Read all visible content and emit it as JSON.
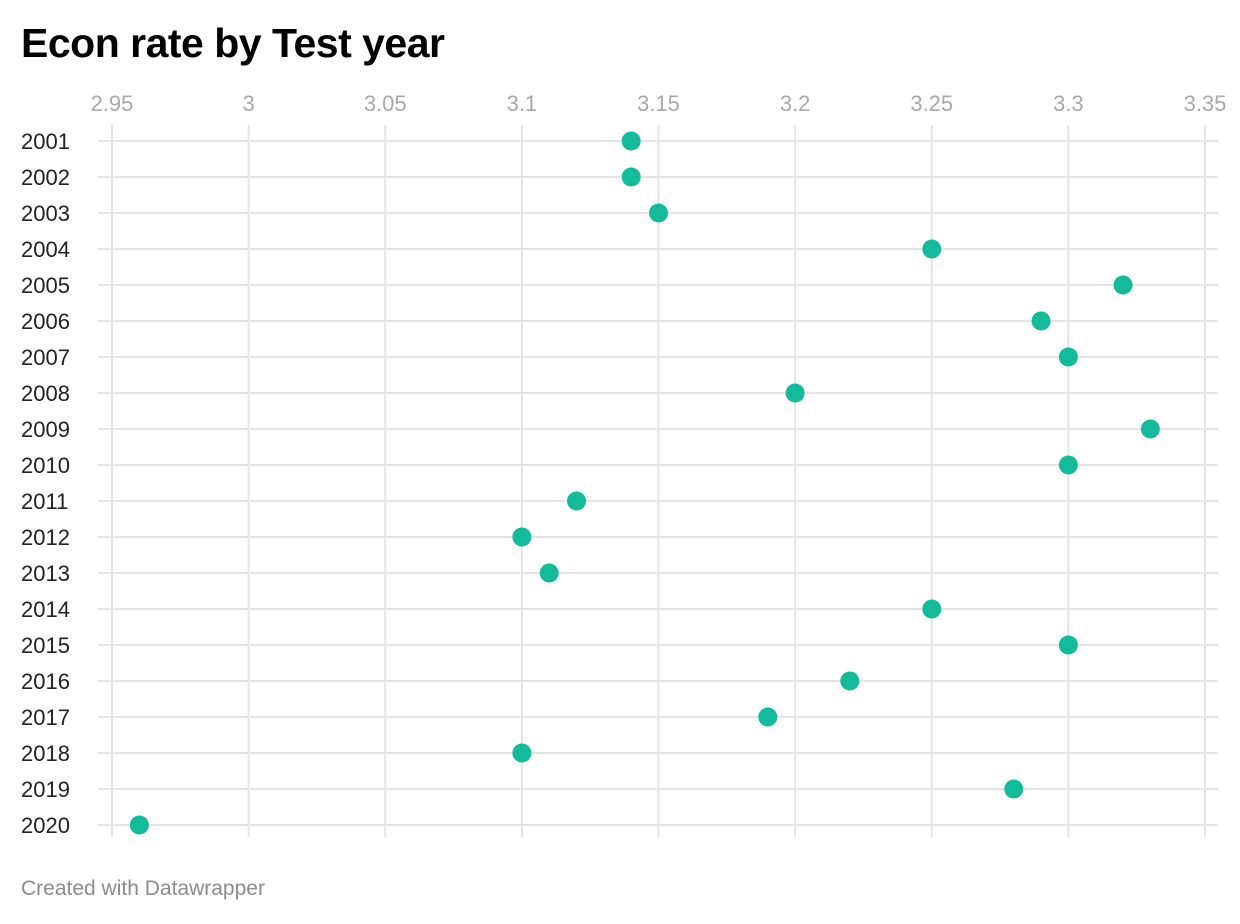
{
  "chart_data": {
    "type": "scatter",
    "title": "Econ rate by Test year",
    "credit": "Created with Datawrapper",
    "xlim": [
      2.95,
      3.35
    ],
    "x_ticks": [
      "2.95",
      "3",
      "3.05",
      "3.1",
      "3.15",
      "3.2",
      "3.25",
      "3.3",
      "3.35"
    ],
    "x_axis_position": "top",
    "grid": true,
    "dot_color": "#13bb9b",
    "grid_color": "#e4e4e4",
    "categories": [
      "2001",
      "2002",
      "2003",
      "2004",
      "2005",
      "2006",
      "2007",
      "2008",
      "2009",
      "2010",
      "2011",
      "2012",
      "2013",
      "2014",
      "2015",
      "2016",
      "2017",
      "2018",
      "2019",
      "2020"
    ],
    "values": [
      3.14,
      3.14,
      3.15,
      3.25,
      3.32,
      3.29,
      3.3,
      3.2,
      3.33,
      3.3,
      3.12,
      3.1,
      3.11,
      3.25,
      3.3,
      3.22,
      3.19,
      3.1,
      3.28,
      2.96
    ]
  }
}
